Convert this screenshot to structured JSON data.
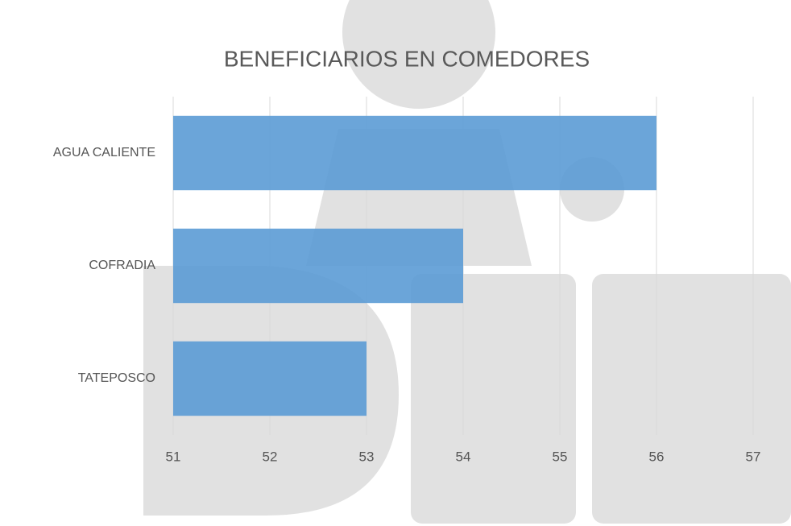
{
  "chart_data": {
    "type": "bar",
    "orientation": "horizontal",
    "title": "BENEFICIARIOS EN COMEDORES",
    "categories": [
      "AGUA CALIENTE",
      "COFRADIA",
      "TATEPOSCO"
    ],
    "values": [
      56,
      54,
      53
    ],
    "color": "#5b9bd5",
    "xlim": [
      51,
      57
    ],
    "xticks": [
      51,
      52,
      53,
      54,
      55,
      56,
      57
    ],
    "grid": true
  }
}
